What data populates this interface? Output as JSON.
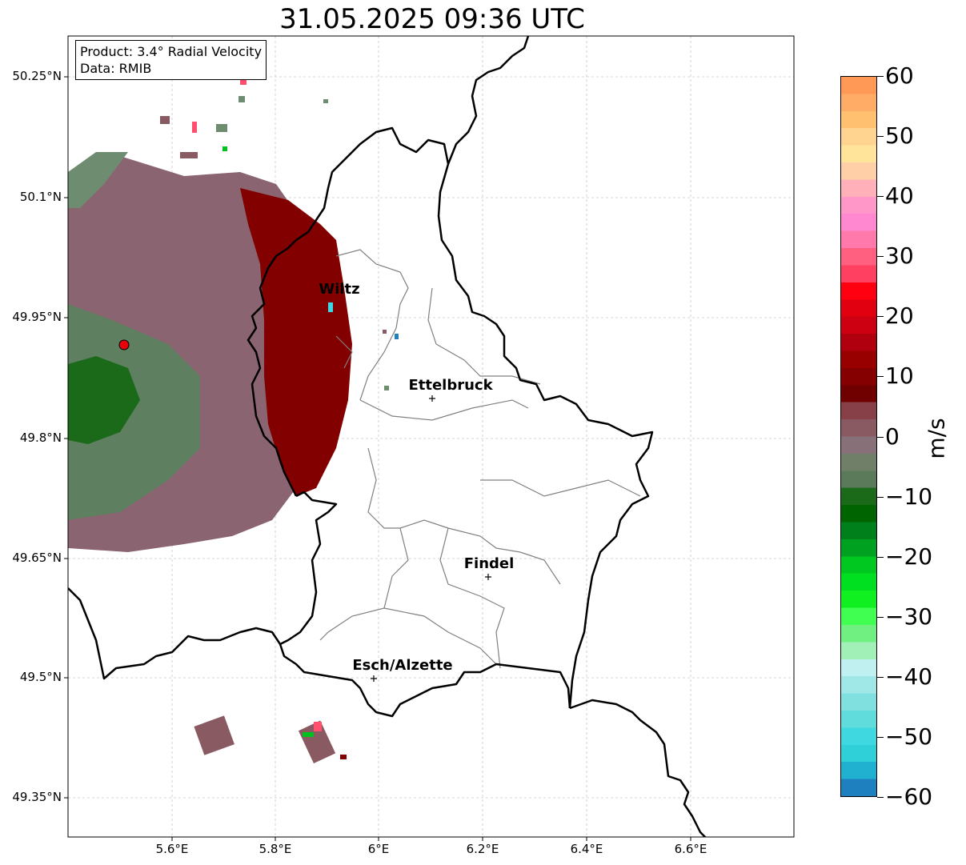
{
  "title": "31.05.2025 09:36 UTC",
  "info": {
    "product": "Product: 3.4° Radial Velocity",
    "data": "Data: RMIB"
  },
  "colorbar": {
    "unit": "m/s",
    "ticks": [
      "60",
      "50",
      "40",
      "30",
      "20",
      "10",
      "0",
      "−10",
      "−20",
      "−30",
      "−40",
      "−50",
      "−60"
    ],
    "stops": [
      "#ff9955",
      "#ffad66",
      "#ffc070",
      "#ffd490",
      "#ffe49a",
      "#ffd0a8",
      "#ffb0b8",
      "#ff98c8",
      "#ff88d0",
      "#ff7aaa",
      "#ff6080",
      "#ff4060",
      "#ff0010",
      "#e00010",
      "#cc0010",
      "#b00010",
      "#980000",
      "#850000",
      "#700000",
      "#884048",
      "#8a5a62",
      "#887078",
      "#708068",
      "#5a7a5a",
      "#1a6a1a",
      "#006400",
      "#00801a",
      "#00a020",
      "#00c820",
      "#00e020",
      "#10f020",
      "#40ff50",
      "#70f080",
      "#a0f0b8",
      "#c0f0f0",
      "#a0e8e8",
      "#80e0e0",
      "#60dcdc",
      "#40d8e0",
      "#30d0d8",
      "#20b0d0",
      "#1f80c0"
    ]
  },
  "axes": {
    "lat_labels": [
      "50.25°N",
      "50.1°N",
      "49.95°N",
      "49.8°N",
      "49.65°N",
      "49.5°N",
      "49.35°N"
    ],
    "lon_labels": [
      "5.6°E",
      "5.8°E",
      "6°E",
      "6.2°E",
      "6.4°E",
      "6.6°E"
    ]
  },
  "cities": [
    {
      "name": "Wiltz"
    },
    {
      "name": "Ettelbruck"
    },
    {
      "name": "Findel"
    },
    {
      "name": "Esch/Alzette"
    }
  ],
  "colors": {
    "border": "#000000",
    "cantons": "#808080",
    "grid": "#c8c8c8",
    "radar_site": "#e8000b"
  }
}
